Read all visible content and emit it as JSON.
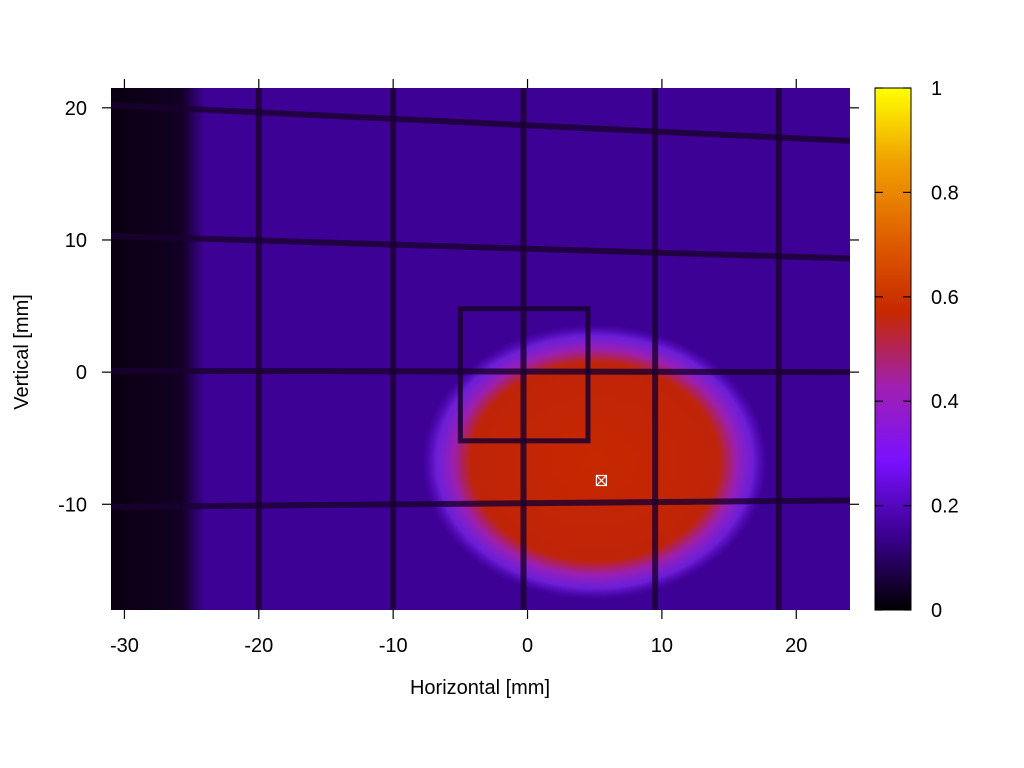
{
  "chart_data": {
    "type": "heatmap",
    "xlabel": "Horizontal [mm]",
    "ylabel": "Vertical [mm]",
    "xlim": [
      -31,
      24
    ],
    "ylim": [
      -18,
      21.5
    ],
    "x_ticks": [
      -30,
      -20,
      -10,
      0,
      10,
      20
    ],
    "y_ticks": [
      -10,
      0,
      10,
      20
    ],
    "x_tick_labels": [
      "-30",
      "-20",
      "-10",
      "0",
      "10",
      "20"
    ],
    "y_tick_labels": [
      "-10",
      "0",
      "10",
      "20"
    ],
    "colorbar": {
      "range": [
        0,
        1
      ],
      "ticks": [
        0,
        0.2,
        0.4,
        0.6,
        0.8,
        1
      ],
      "tick_labels": [
        "0",
        "0.2",
        "0.4",
        "0.6",
        "0.8",
        "1"
      ],
      "colormap": [
        "#000000",
        "#3b0090",
        "#7a10ff",
        "#a020b0",
        "#c62800",
        "#e06000",
        "#f0a000",
        "#ffff00"
      ]
    },
    "grid": false,
    "background_level": 0.15,
    "dark_edge_x_below": -24,
    "grid_wire_level": 0.04,
    "vertical_wires_x": [
      -20,
      -10,
      -0.3,
      9.5,
      18.7
    ],
    "horizontal_wires": [
      {
        "x": [
          -31,
          24
        ],
        "y": [
          20.2,
          17.5
        ]
      },
      {
        "x": [
          -31,
          24
        ],
        "y": [
          10.3,
          8.6
        ]
      },
      {
        "x": [
          -31,
          24
        ],
        "y": [
          0.1,
          0.0
        ]
      },
      {
        "x": [
          -31,
          24
        ],
        "y": [
          -10.2,
          -9.7
        ]
      }
    ],
    "frame_wire": {
      "x": [
        -5,
        4.5
      ],
      "y": [
        -5.2,
        4.8
      ]
    },
    "beam_spot": {
      "center": [
        5.0,
        -6.8
      ],
      "half_width": [
        9.5,
        8.0
      ],
      "peak": 0.52
    },
    "marker": {
      "x": 5.5,
      "y": -8.2,
      "symbol": "box-x"
    }
  }
}
